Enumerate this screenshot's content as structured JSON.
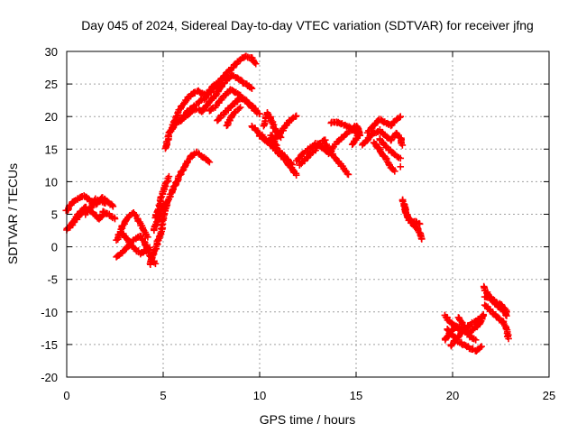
{
  "chart_data": {
    "type": "scatter",
    "title": "Day 045 of 2024, Sidereal Day-to-day VTEC variation (SDTVAR) for receiver jfng",
    "xlabel": "GPS time / hours",
    "ylabel": "SDTVAR / TECUs",
    "xlim": [
      0,
      25
    ],
    "ylim": [
      -20,
      30
    ],
    "x_ticks": [
      "0",
      "5",
      "10",
      "15",
      "20",
      "25"
    ],
    "y_ticks": [
      "30",
      "25",
      "20",
      "15",
      "10",
      "5",
      "0",
      "-5",
      "-10",
      "-15",
      "-20"
    ],
    "grid": true,
    "marker": "plus",
    "marker_color": "#ff0000",
    "tracks": [
      [
        [
          0.0,
          2.6
        ],
        [
          0.4,
          4.0
        ],
        [
          0.8,
          5.2
        ],
        [
          1.1,
          5.8
        ],
        [
          1.4,
          5.1
        ],
        [
          1.7,
          4.2
        ],
        [
          1.9,
          5.4
        ],
        [
          2.2,
          5.0
        ],
        [
          2.5,
          4.3
        ]
      ],
      [
        [
          0.0,
          5.5
        ],
        [
          0.3,
          6.8
        ],
        [
          0.6,
          7.3
        ],
        [
          0.9,
          7.9
        ],
        [
          1.2,
          7.2
        ],
        [
          1.5,
          6.5
        ],
        [
          1.8,
          7.6
        ],
        [
          2.1,
          7.0
        ],
        [
          2.4,
          6.2
        ]
      ],
      [
        [
          0.2,
          3.0
        ],
        [
          0.5,
          4.6
        ],
        [
          0.8,
          5.6
        ],
        [
          1.0,
          6.1
        ]
      ],
      [
        [
          1.0,
          5.0
        ],
        [
          1.5,
          7.3
        ],
        [
          2.0,
          6.7
        ]
      ],
      [
        [
          2.6,
          1.0
        ],
        [
          2.9,
          3.2
        ],
        [
          3.2,
          4.6
        ],
        [
          3.5,
          5.2
        ],
        [
          3.7,
          4.1
        ],
        [
          4.0,
          2.6
        ],
        [
          4.2,
          1.5
        ]
      ],
      [
        [
          2.6,
          -1.6
        ],
        [
          3.0,
          -0.5
        ],
        [
          3.4,
          0.8
        ],
        [
          3.8,
          1.7
        ],
        [
          4.1,
          0.3
        ],
        [
          4.4,
          -1.8
        ],
        [
          4.6,
          -2.6
        ]
      ],
      [
        [
          2.8,
          2.4
        ],
        [
          3.1,
          1.3
        ],
        [
          3.4,
          0.0
        ],
        [
          3.8,
          -1.0
        ],
        [
          4.1,
          -0.6
        ],
        [
          4.3,
          -0.1
        ]
      ],
      [
        [
          4.3,
          -2.8
        ],
        [
          4.5,
          -1.2
        ],
        [
          4.7,
          0.6
        ],
        [
          4.9,
          2.4
        ],
        [
          5.0,
          4.4
        ],
        [
          5.2,
          6.6
        ],
        [
          5.5,
          8.8
        ],
        [
          5.8,
          10.6
        ],
        [
          6.1,
          12.3
        ],
        [
          6.4,
          13.8
        ],
        [
          6.7,
          14.5
        ],
        [
          7.0,
          13.9
        ],
        [
          7.2,
          13.5
        ],
        [
          7.4,
          13.0
        ]
      ],
      [
        [
          4.6,
          4.4
        ],
        [
          4.8,
          6.3
        ],
        [
          4.9,
          7.6
        ],
        [
          5.1,
          9.3
        ],
        [
          5.3,
          10.8
        ]
      ],
      [
        [
          4.5,
          2.6
        ],
        [
          4.7,
          3.9
        ],
        [
          4.9,
          5.4
        ],
        [
          5.2,
          6.8
        ]
      ],
      [
        [
          5.1,
          15.0
        ],
        [
          5.3,
          17.2
        ],
        [
          5.6,
          19.4
        ],
        [
          5.9,
          21.3
        ],
        [
          6.2,
          22.6
        ],
        [
          6.5,
          23.5
        ],
        [
          6.8,
          23.9
        ],
        [
          7.2,
          23.2
        ],
        [
          7.6,
          24.6
        ],
        [
          8.0,
          25.8
        ],
        [
          8.4,
          26.9
        ],
        [
          8.7,
          27.9
        ],
        [
          9.0,
          28.8
        ],
        [
          9.3,
          29.3
        ],
        [
          9.6,
          28.9
        ],
        [
          9.8,
          28.1
        ]
      ],
      [
        [
          5.3,
          17.6
        ],
        [
          5.6,
          18.7
        ],
        [
          6.0,
          19.8
        ],
        [
          6.4,
          21.1
        ],
        [
          6.8,
          22.0
        ],
        [
          7.2,
          23.0
        ],
        [
          7.6,
          24.2
        ],
        [
          8.0,
          24.8
        ]
      ],
      [
        [
          5.9,
          19.3
        ],
        [
          6.3,
          20.4
        ],
        [
          6.7,
          21.2
        ],
        [
          7.0,
          20.7
        ],
        [
          7.4,
          22.2
        ],
        [
          7.8,
          23.6
        ],
        [
          8.2,
          25.4
        ],
        [
          8.6,
          26.3
        ],
        [
          9.0,
          25.6
        ],
        [
          9.3,
          24.9
        ],
        [
          9.6,
          24.3
        ]
      ],
      [
        [
          7.4,
          20.8
        ],
        [
          7.8,
          21.8
        ],
        [
          8.1,
          23.0
        ],
        [
          8.5,
          24.1
        ],
        [
          8.8,
          23.6
        ],
        [
          9.2,
          22.6
        ],
        [
          9.6,
          21.3
        ],
        [
          10.0,
          20.4
        ]
      ],
      [
        [
          7.8,
          19.4
        ],
        [
          8.2,
          20.6
        ],
        [
          8.6,
          21.8
        ],
        [
          9.0,
          22.9
        ],
        [
          9.4,
          22.2
        ],
        [
          9.8,
          21.0
        ]
      ],
      [
        [
          8.3,
          18.6
        ],
        [
          8.6,
          20.4
        ],
        [
          9.0,
          21.4
        ]
      ],
      [
        [
          9.6,
          18.6
        ],
        [
          10.0,
          17.4
        ],
        [
          10.4,
          16.1
        ],
        [
          10.8,
          15.0
        ],
        [
          11.2,
          13.7
        ],
        [
          11.6,
          12.3
        ],
        [
          11.9,
          11.0
        ]
      ],
      [
        [
          10.0,
          17.0
        ],
        [
          10.4,
          16.2
        ],
        [
          10.8,
          16.6
        ],
        [
          11.2,
          17.9
        ],
        [
          11.6,
          19.5
        ],
        [
          11.9,
          20.1
        ]
      ],
      [
        [
          10.2,
          18.6
        ],
        [
          10.4,
          20.6
        ],
        [
          10.6,
          19.6
        ],
        [
          10.8,
          17.9
        ],
        [
          11.1,
          16.8
        ]
      ],
      [
        [
          10.6,
          17.2
        ],
        [
          10.9,
          15.1
        ],
        [
          11.3,
          13.8
        ],
        [
          11.7,
          12.6
        ]
      ],
      [
        [
          11.9,
          13.1
        ],
        [
          12.2,
          14.2
        ],
        [
          12.6,
          15.1
        ],
        [
          12.9,
          15.9
        ],
        [
          13.2,
          15.3
        ],
        [
          13.5,
          14.6
        ]
      ],
      [
        [
          12.1,
          12.6
        ],
        [
          12.4,
          13.6
        ],
        [
          12.8,
          14.6
        ],
        [
          13.1,
          15.9
        ],
        [
          13.4,
          16.4
        ]
      ],
      [
        [
          13.4,
          15.9
        ],
        [
          13.7,
          14.5
        ],
        [
          14.0,
          13.3
        ],
        [
          14.3,
          12.3
        ],
        [
          14.6,
          11.1
        ]
      ],
      [
        [
          13.6,
          14.3
        ],
        [
          13.9,
          15.7
        ],
        [
          14.2,
          16.6
        ],
        [
          14.5,
          17.4
        ],
        [
          14.8,
          18.1
        ],
        [
          15.0,
          18.6
        ],
        [
          15.2,
          17.6
        ],
        [
          15.0,
          16.6
        ],
        [
          14.8,
          15.7
        ]
      ],
      [
        [
          13.7,
          19.1
        ],
        [
          14.1,
          19.1
        ],
        [
          14.5,
          18.6
        ],
        [
          14.9,
          17.8
        ],
        [
          15.2,
          17.1
        ]
      ],
      [
        [
          15.3,
          15.6
        ],
        [
          15.6,
          16.5
        ],
        [
          15.9,
          17.4
        ],
        [
          16.2,
          17.9
        ],
        [
          16.5,
          17.1
        ],
        [
          16.8,
          16.4
        ],
        [
          17.1,
          17.5
        ],
        [
          17.3,
          16.6
        ],
        [
          17.4,
          15.6
        ]
      ],
      [
        [
          15.6,
          17.6
        ],
        [
          15.9,
          18.6
        ],
        [
          16.2,
          19.6
        ],
        [
          16.5,
          19.1
        ],
        [
          16.8,
          18.6
        ],
        [
          17.1,
          19.6
        ],
        [
          17.3,
          20.0
        ]
      ],
      [
        [
          15.9,
          16.1
        ],
        [
          16.2,
          15.1
        ],
        [
          16.5,
          13.7
        ],
        [
          16.8,
          12.2
        ],
        [
          17.0,
          11.6
        ]
      ],
      [
        [
          16.2,
          16.6
        ],
        [
          16.6,
          15.2
        ],
        [
          17.0,
          14.1
        ],
        [
          17.3,
          13.6
        ]
      ],
      [
        [
          17.3,
          12.3
        ]
      ],
      [
        [
          17.4,
          7.3
        ],
        [
          17.5,
          6.3
        ],
        [
          17.6,
          5.2
        ],
        [
          17.7,
          4.4
        ],
        [
          17.8,
          4.0
        ],
        [
          17.9,
          3.6
        ],
        [
          18.0,
          3.3
        ],
        [
          18.1,
          3.0
        ],
        [
          18.2,
          2.9
        ],
        [
          18.3,
          2.1
        ],
        [
          18.4,
          1.2
        ]
      ],
      [
        [
          17.5,
          6.0
        ],
        [
          17.7,
          4.6
        ],
        [
          17.9,
          3.8
        ],
        [
          18.1,
          3.8
        ],
        [
          18.3,
          3.5
        ]
      ],
      [
        [
          19.6,
          -10.6
        ],
        [
          19.9,
          -11.7
        ],
        [
          20.2,
          -12.4
        ],
        [
          20.5,
          -12.8
        ],
        [
          20.8,
          -13.3
        ],
        [
          21.1,
          -12.6
        ],
        [
          21.4,
          -11.8
        ],
        [
          21.6,
          -10.6
        ]
      ],
      [
        [
          19.7,
          -12.6
        ],
        [
          20.0,
          -13.6
        ],
        [
          20.3,
          -14.5
        ],
        [
          20.6,
          -15.1
        ],
        [
          20.9,
          -15.6
        ],
        [
          21.2,
          -15.9
        ],
        [
          21.5,
          -15.3
        ]
      ],
      [
        [
          19.6,
          -14.3
        ],
        [
          19.9,
          -13.2
        ],
        [
          20.2,
          -12.1
        ],
        [
          20.5,
          -12.6
        ]
      ],
      [
        [
          20.3,
          -10.8
        ],
        [
          20.6,
          -12.3
        ],
        [
          20.9,
          -13.8
        ],
        [
          21.2,
          -14.3
        ]
      ],
      [
        [
          19.9,
          -15.3
        ],
        [
          20.2,
          -14.1
        ],
        [
          20.5,
          -13.1
        ],
        [
          20.8,
          -12.2
        ],
        [
          21.1,
          -11.6
        ],
        [
          21.4,
          -11.1
        ],
        [
          21.6,
          -10.4
        ]
      ],
      [
        [
          21.6,
          -6.1
        ],
        [
          21.8,
          -7.1
        ],
        [
          22.0,
          -8.1
        ],
        [
          22.3,
          -9.1
        ],
        [
          22.6,
          -9.6
        ],
        [
          22.8,
          -10.6
        ]
      ],
      [
        [
          21.7,
          -9.0
        ],
        [
          22.0,
          -9.9
        ],
        [
          22.3,
          -10.8
        ],
        [
          22.6,
          -11.5
        ],
        [
          22.8,
          -12.6
        ],
        [
          22.9,
          -14.1
        ]
      ],
      [
        [
          21.7,
          -7.6
        ],
        [
          22.0,
          -7.9
        ],
        [
          22.3,
          -8.6
        ],
        [
          22.6,
          -9.1
        ],
        [
          22.8,
          -10.0
        ]
      ]
    ]
  }
}
